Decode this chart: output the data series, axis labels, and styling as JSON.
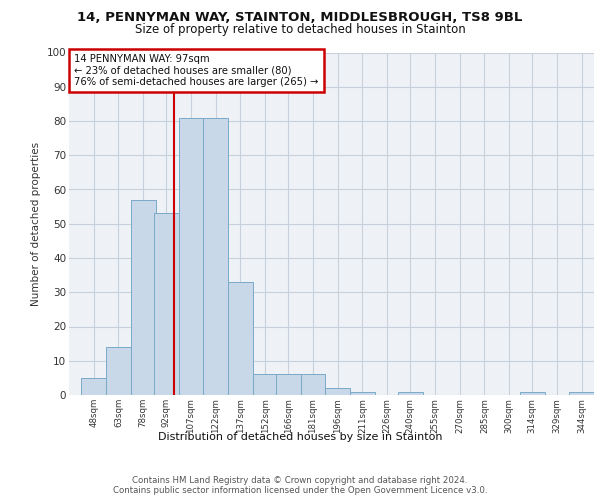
{
  "title1": "14, PENNYMAN WAY, STAINTON, MIDDLESBROUGH, TS8 9BL",
  "title2": "Size of property relative to detached houses in Stainton",
  "xlabel": "Distribution of detached houses by size in Stainton",
  "ylabel": "Number of detached properties",
  "bin_labels": [
    "48sqm",
    "63sqm",
    "78sqm",
    "92sqm",
    "107sqm",
    "122sqm",
    "137sqm",
    "152sqm",
    "166sqm",
    "181sqm",
    "196sqm",
    "211sqm",
    "226sqm",
    "240sqm",
    "255sqm",
    "270sqm",
    "285sqm",
    "300sqm",
    "314sqm",
    "329sqm",
    "344sqm"
  ],
  "bin_values": [
    5,
    14,
    57,
    53,
    81,
    81,
    33,
    6,
    6,
    6,
    2,
    1,
    0,
    1,
    0,
    0,
    0,
    0,
    1,
    0,
    1
  ],
  "bar_color": "#c8d8e8",
  "bar_edge_color": "#7aaac8",
  "property_sqm": 97,
  "property_line_color": "#cc0000",
  "annotation_line1": "14 PENNYMAN WAY: 97sqm",
  "annotation_line2": "← 23% of detached houses are smaller (80)",
  "annotation_line3": "76% of semi-detached houses are larger (265) →",
  "annotation_box_color": "#ffffff",
  "annotation_border_color": "#cc0000",
  "footer1": "Contains HM Land Registry data © Crown copyright and database right 2024.",
  "footer2": "Contains public sector information licensed under the Open Government Licence v3.0.",
  "bg_color": "#eef2f7",
  "grid_color": "#c8d0dc",
  "ylim": [
    0,
    100
  ],
  "bin_width": 15
}
